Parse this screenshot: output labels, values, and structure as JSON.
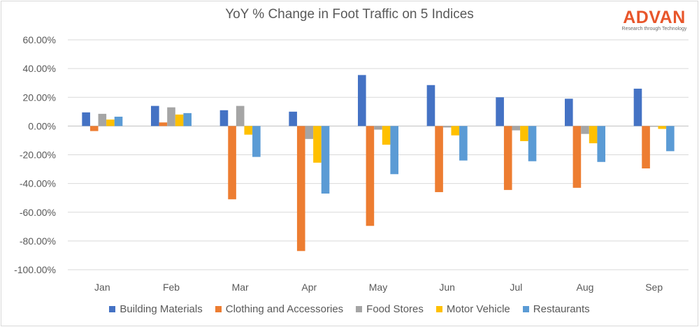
{
  "chart_data": {
    "type": "bar",
    "title": "YoY % Change in Foot Traffic on 5 Indices",
    "categories": [
      "Jan",
      "Feb",
      "Mar",
      "Apr",
      "May",
      "Jun",
      "Jul",
      "Aug",
      "Sep"
    ],
    "ylim": [
      -100,
      60
    ],
    "yticks": [
      60,
      40,
      20,
      0,
      -20,
      -40,
      -60,
      -80,
      -100
    ],
    "ytick_labels": [
      "60.00%",
      "40.00%",
      "20.00%",
      "0.00%",
      "-20.00%",
      "-40.00%",
      "-60.00%",
      "-80.00%",
      "-100.00%"
    ],
    "grid": true,
    "legend_position": "bottom",
    "series": [
      {
        "name": "Building Materials",
        "color": "#4472c4",
        "values": [
          9.5,
          14,
          11,
          10,
          35.5,
          28.5,
          20,
          19,
          26
        ]
      },
      {
        "name": "Clothing and Accessories",
        "color": "#ed7d31",
        "values": [
          -3.5,
          2.5,
          -51,
          -87,
          -69.5,
          -46,
          -44.5,
          -43,
          -29.5
        ]
      },
      {
        "name": "Food Stores",
        "color": "#a5a5a5",
        "values": [
          8.5,
          13,
          14,
          -9,
          -2.5,
          -1,
          -3,
          -5.5,
          -0.5
        ]
      },
      {
        "name": "Motor Vehicle",
        "color": "#ffc000",
        "values": [
          4.5,
          8,
          -6,
          -25.5,
          -13,
          -6.5,
          -10.5,
          -12,
          -2
        ]
      },
      {
        "name": "Restaurants",
        "color": "#5b9bd5",
        "values": [
          6.5,
          9,
          -21.5,
          -47,
          -33.5,
          -24,
          -24.5,
          -25,
          -17.5
        ]
      }
    ]
  },
  "logo": {
    "name": "ADVAN",
    "tagline": "Research through Technology"
  }
}
